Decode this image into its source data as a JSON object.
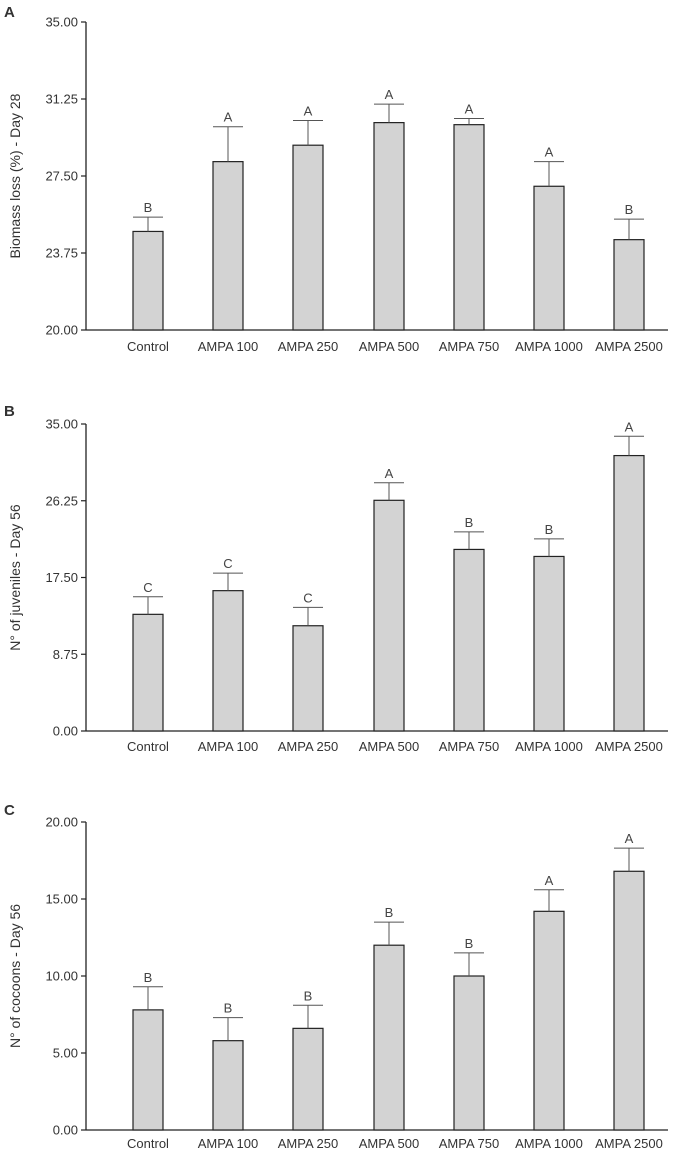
{
  "chart_data": [
    {
      "type": "bar",
      "panel": "A",
      "categories": [
        "Control",
        "AMPA 100",
        "AMPA 250",
        "AMPA 500",
        "AMPA 750",
        "AMPA 1000",
        "AMPA 2500"
      ],
      "values": [
        24.8,
        28.2,
        29.0,
        30.1,
        30.0,
        27.0,
        24.4
      ],
      "errors": [
        0.7,
        1.7,
        1.2,
        0.9,
        0.3,
        1.2,
        1.0
      ],
      "significance": [
        "B",
        "A",
        "A",
        "A",
        "A",
        "A",
        "B"
      ],
      "ylabel": "Biomass loss (%) - Day 28",
      "xlabel": "",
      "ylim": [
        20.0,
        35.0
      ],
      "yticks": [
        "20.00",
        "23.75",
        "27.50",
        "31.25",
        "35.00"
      ],
      "colors": {
        "bar": "#d3d3d3",
        "edge": "#222222",
        "error": "#555555"
      }
    },
    {
      "type": "bar",
      "panel": "B",
      "categories": [
        "Control",
        "AMPA 100",
        "AMPA 250",
        "AMPA 500",
        "AMPA 750",
        "AMPA 1000",
        "AMPA 2500"
      ],
      "values": [
        13.3,
        16.0,
        12.0,
        26.3,
        20.7,
        19.9,
        31.4
      ],
      "errors": [
        2.0,
        2.0,
        2.1,
        2.0,
        2.0,
        2.0,
        2.2
      ],
      "significance": [
        "C",
        "C",
        "C",
        "A",
        "B",
        "B",
        "A"
      ],
      "ylabel": "N° of juveniles - Day 56",
      "xlabel": "",
      "ylim": [
        0.0,
        35.0
      ],
      "yticks": [
        "0.00",
        "8.75",
        "17.50",
        "26.25",
        "35.00"
      ],
      "colors": {
        "bar": "#d3d3d3",
        "edge": "#222222",
        "error": "#555555"
      }
    },
    {
      "type": "bar",
      "panel": "C",
      "categories": [
        "Control",
        "AMPA 100",
        "AMPA 250",
        "AMPA 500",
        "AMPA 750",
        "AMPA 1000",
        "AMPA 2500"
      ],
      "values": [
        7.8,
        5.8,
        6.6,
        12.0,
        10.0,
        14.2,
        16.8
      ],
      "errors": [
        1.5,
        1.5,
        1.5,
        1.5,
        1.5,
        1.4,
        1.5
      ],
      "significance": [
        "B",
        "B",
        "B",
        "B",
        "B",
        "A",
        "A"
      ],
      "ylabel": "N° of cocoons - Day 56",
      "xlabel": "",
      "ylim": [
        0.0,
        20.0
      ],
      "yticks": [
        "0.00",
        "5.00",
        "10.00",
        "15.00",
        "20.00"
      ],
      "colors": {
        "bar": "#d3d3d3",
        "edge": "#222222",
        "error": "#555555"
      }
    }
  ]
}
